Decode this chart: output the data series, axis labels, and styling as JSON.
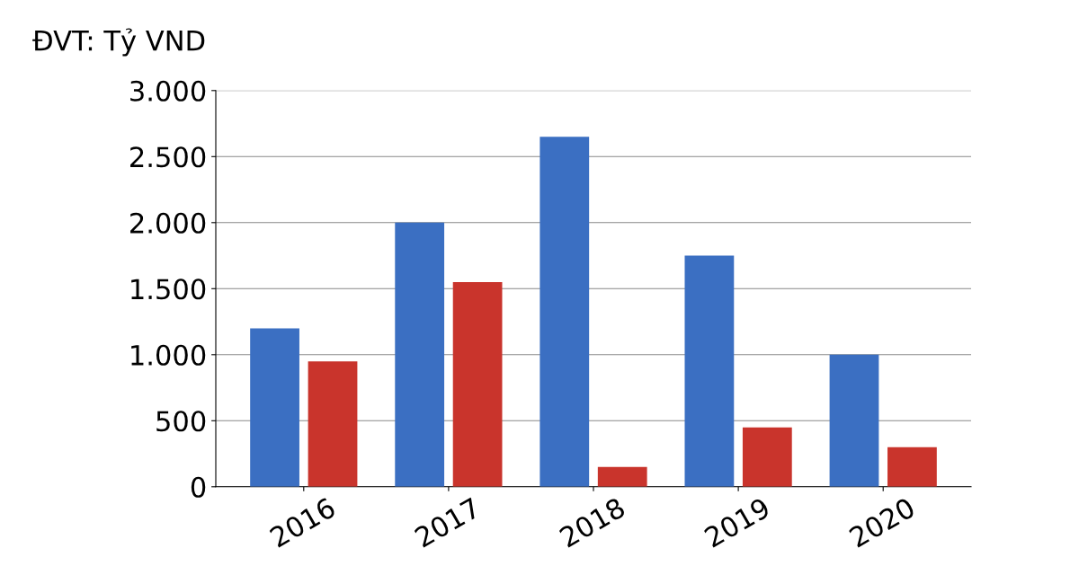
{
  "chart_data": {
    "type": "bar",
    "ylabel": "ĐVT: Tỷ VND",
    "categories": [
      "2016",
      "2017",
      "2018",
      "2019",
      "2020"
    ],
    "series": [
      {
        "color": "#3b6fc2",
        "values": [
          1200,
          2000,
          2650,
          1750,
          1000
        ]
      },
      {
        "color": "#c9342c",
        "values": [
          950,
          1550,
          150,
          450,
          300
        ]
      }
    ],
    "ylim": [
      0,
      3000
    ],
    "yticks": [
      {
        "value": 0,
        "label": "0"
      },
      {
        "value": 500,
        "label": "500"
      },
      {
        "value": 1000,
        "label": "1.000"
      },
      {
        "value": 1500,
        "label": "1.500"
      },
      {
        "value": 2000,
        "label": "2.000"
      },
      {
        "value": 2500,
        "label": "2.500"
      },
      {
        "value": 3000,
        "label": "3.000"
      }
    ],
    "grid": "y"
  }
}
